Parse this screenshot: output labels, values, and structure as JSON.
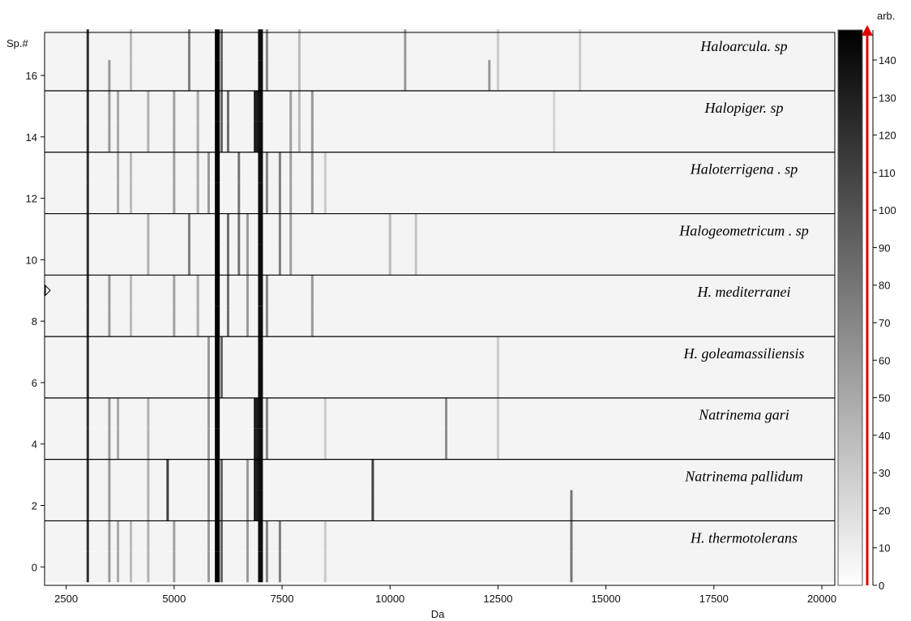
{
  "chart_data": {
    "type": "heatmap",
    "title": "",
    "xlabel": "Da",
    "ylabel": "Sp.#",
    "colorbar_label": "arb.",
    "xlim": [
      2000,
      20300
    ],
    "ylim": [
      -0.6,
      17.4
    ],
    "xticks": [
      2500,
      5000,
      7500,
      10000,
      12500,
      15000,
      17500,
      20000
    ],
    "yticks": [
      0,
      2,
      4,
      6,
      8,
      10,
      12,
      14,
      16
    ],
    "colorbar_range": [
      0,
      148
    ],
    "colorbar_ticks": [
      0,
      10,
      20,
      30,
      40,
      50,
      60,
      70,
      80,
      90,
      100,
      110,
      120,
      130,
      140
    ],
    "colormap": "white-to-black",
    "spectrum_marker_at": 9,
    "group_separators": [
      1.5,
      3.5,
      5.5,
      7.5,
      9.5,
      11.5,
      13.5,
      15.5
    ],
    "groups": [
      {
        "name": "H.  thermotolerans",
        "spectra": [
          0,
          1
        ]
      },
      {
        "name": "Natrinema pallidum",
        "spectra": [
          2,
          3
        ]
      },
      {
        "name": "Natrinema gari",
        "spectra": [
          4,
          5
        ]
      },
      {
        "name": "H. goleamassiliensis",
        "spectra": [
          6,
          7
        ]
      },
      {
        "name": "H.  mediterranei",
        "spectra": [
          8,
          9
        ]
      },
      {
        "name": "Halogeometricum . sp",
        "spectra": [
          10,
          11
        ]
      },
      {
        "name": "Haloterrigena . sp",
        "spectra": [
          12,
          13
        ]
      },
      {
        "name": "Halopiger. sp",
        "spectra": [
          14,
          15
        ]
      },
      {
        "name": "Haloarcula. sp",
        "spectra": [
          16,
          17
        ]
      }
    ],
    "bands": [
      {
        "mass": 3000,
        "intensity": 120,
        "spectra": [
          0,
          1,
          2,
          3,
          4,
          5,
          6,
          7,
          8,
          9,
          10,
          11,
          12,
          13,
          14,
          15,
          16,
          17
        ]
      },
      {
        "mass": 3500,
        "intensity": 60,
        "spectra": [
          0,
          1,
          2,
          3,
          4,
          5,
          8,
          9,
          14,
          15,
          16
        ]
      },
      {
        "mass": 3700,
        "intensity": 50,
        "spectra": [
          0,
          1,
          4,
          5,
          12,
          13,
          14,
          15
        ]
      },
      {
        "mass": 4000,
        "intensity": 40,
        "spectra": [
          0,
          1,
          8,
          9,
          12,
          13,
          16,
          17
        ]
      },
      {
        "mass": 4400,
        "intensity": 45,
        "spectra": [
          0,
          1,
          2,
          3,
          4,
          5,
          10,
          11,
          14,
          15
        ]
      },
      {
        "mass": 4850,
        "intensity": 110,
        "spectra": [
          2,
          3
        ]
      },
      {
        "mass": 5000,
        "intensity": 55,
        "spectra": [
          0,
          1,
          8,
          9,
          12,
          13,
          14,
          15
        ]
      },
      {
        "mass": 5350,
        "intensity": 75,
        "spectra": [
          10,
          11,
          16,
          17
        ]
      },
      {
        "mass": 5550,
        "intensity": 50,
        "spectra": [
          8,
          9,
          12,
          13,
          14,
          15
        ]
      },
      {
        "mass": 5800,
        "intensity": 60,
        "spectra": [
          0,
          1,
          2,
          3,
          4,
          5,
          6,
          7,
          12,
          13
        ]
      },
      {
        "mass": 6000,
        "intensity": 148,
        "spectra": [
          0,
          1,
          2,
          3,
          4,
          5,
          6,
          7,
          8,
          9,
          10,
          11,
          12,
          13,
          14,
          15,
          16,
          17
        ]
      },
      {
        "mass": 6100,
        "intensity": 90,
        "spectra": [
          0,
          1,
          2,
          3,
          6,
          7,
          14,
          15,
          16,
          17
        ]
      },
      {
        "mass": 6250,
        "intensity": 85,
        "spectra": [
          8,
          9,
          10,
          11,
          14,
          15
        ]
      },
      {
        "mass": 6500,
        "intensity": 80,
        "spectra": [
          10,
          11,
          12,
          13
        ]
      },
      {
        "mass": 6700,
        "intensity": 60,
        "spectra": [
          0,
          1,
          2,
          3,
          8,
          9,
          10,
          11
        ]
      },
      {
        "mass": 6900,
        "intensity": 130,
        "spectra": [
          2,
          3,
          4,
          5,
          14,
          15
        ]
      },
      {
        "mass": 7000,
        "intensity": 140,
        "spectra": [
          0,
          1,
          2,
          3,
          4,
          5,
          6,
          7,
          8,
          9,
          10,
          11,
          12,
          13,
          14,
          15,
          16,
          17
        ]
      },
      {
        "mass": 7150,
        "intensity": 70,
        "spectra": [
          0,
          1,
          4,
          5,
          8,
          9,
          12,
          13,
          16,
          17
        ]
      },
      {
        "mass": 7450,
        "intensity": 75,
        "spectra": [
          0,
          1,
          10,
          11,
          12,
          13
        ]
      },
      {
        "mass": 7700,
        "intensity": 55,
        "spectra": [
          10,
          11,
          12,
          13,
          14,
          15
        ]
      },
      {
        "mass": 7900,
        "intensity": 40,
        "spectra": [
          14,
          15,
          16,
          17
        ]
      },
      {
        "mass": 8200,
        "intensity": 60,
        "spectra": [
          8,
          9,
          12,
          13,
          14,
          15
        ]
      },
      {
        "mass": 8500,
        "intensity": 30,
        "spectra": [
          0,
          1,
          4,
          5,
          12,
          13
        ]
      },
      {
        "mass": 9600,
        "intensity": 110,
        "spectra": [
          2,
          3
        ]
      },
      {
        "mass": 10000,
        "intensity": 40,
        "spectra": [
          10,
          11
        ]
      },
      {
        "mass": 10350,
        "intensity": 60,
        "spectra": [
          16,
          17
        ]
      },
      {
        "mass": 10600,
        "intensity": 35,
        "spectra": [
          10,
          11
        ]
      },
      {
        "mass": 11300,
        "intensity": 65,
        "spectra": [
          4,
          5
        ]
      },
      {
        "mass": 12300,
        "intensity": 60,
        "spectra": [
          16
        ]
      },
      {
        "mass": 12500,
        "intensity": 30,
        "spectra": [
          4,
          5,
          6,
          7,
          16,
          17
        ]
      },
      {
        "mass": 13800,
        "intensity": 25,
        "spectra": [
          14,
          15
        ]
      },
      {
        "mass": 14200,
        "intensity": 80,
        "spectra": [
          0,
          1,
          2
        ]
      },
      {
        "mass": 14400,
        "intensity": 30,
        "spectra": [
          16,
          17
        ]
      }
    ]
  }
}
